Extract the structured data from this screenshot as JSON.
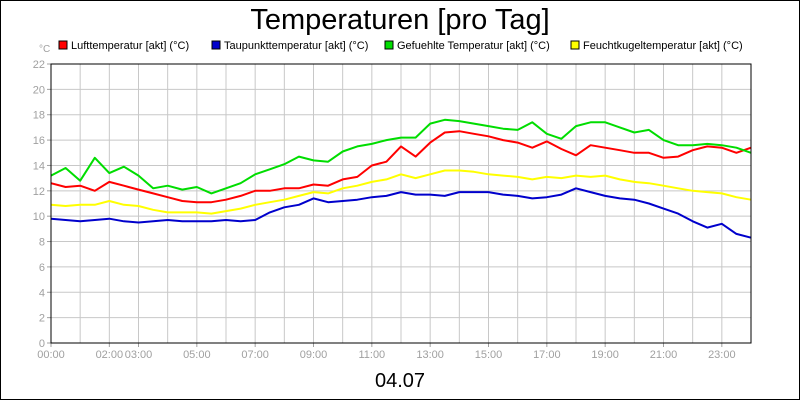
{
  "chart_data": {
    "type": "line",
    "title": "Temperaturen [pro Tag]",
    "date_label": "04.07",
    "y_unit": "°C",
    "ylim": [
      0,
      22
    ],
    "xlim": [
      0,
      24
    ],
    "y_ticks": [
      0,
      2,
      4,
      6,
      8,
      10,
      12,
      14,
      16,
      18,
      20,
      22
    ],
    "x_ticks": [
      {
        "pos": 0,
        "label": "00:00"
      },
      {
        "pos": 2,
        "label": "02:00"
      },
      {
        "pos": 3,
        "label": "03:00"
      },
      {
        "pos": 5,
        "label": "05:00"
      },
      {
        "pos": 7,
        "label": "07:00"
      },
      {
        "pos": 9,
        "label": "09:00"
      },
      {
        "pos": 11,
        "label": "11:00"
      },
      {
        "pos": 13,
        "label": "13:00"
      },
      {
        "pos": 15,
        "label": "15:00"
      },
      {
        "pos": 17,
        "label": "17:00"
      },
      {
        "pos": 19,
        "label": "19:00"
      },
      {
        "pos": 21,
        "label": "21:00"
      },
      {
        "pos": 23,
        "label": "23:00"
      }
    ],
    "grid": true,
    "legend_position": "top",
    "x": [
      0,
      0.5,
      1,
      1.5,
      2,
      2.5,
      3,
      3.5,
      4,
      4.5,
      5,
      5.5,
      6,
      6.5,
      7,
      7.5,
      8,
      8.5,
      9,
      9.5,
      10,
      10.5,
      11,
      11.5,
      12,
      12.5,
      13,
      13.5,
      14,
      14.5,
      15,
      15.5,
      16,
      16.5,
      17,
      17.5,
      18,
      18.5,
      19,
      19.5,
      20,
      20.5,
      21,
      21.5,
      22,
      22.5,
      23,
      23.5,
      24
    ],
    "series": [
      {
        "name": "Lufttemperatur [akt] (°C)",
        "color": "#ff0000",
        "values": [
          12.6,
          12.3,
          12.4,
          12.0,
          12.7,
          12.4,
          12.1,
          11.8,
          11.5,
          11.2,
          11.1,
          11.1,
          11.3,
          11.6,
          12.0,
          12.0,
          12.2,
          12.2,
          12.5,
          12.4,
          12.9,
          13.1,
          14.0,
          14.3,
          15.5,
          14.7,
          15.8,
          16.6,
          16.7,
          16.5,
          16.3,
          16.0,
          15.8,
          15.4,
          15.9,
          15.3,
          14.8,
          15.6,
          15.4,
          15.2,
          15.0,
          15.0,
          14.6,
          14.7,
          15.2,
          15.5,
          15.4,
          15.0,
          15.4
        ]
      },
      {
        "name": "Taupunkttemperatur [akt] (°C)",
        "color": "#0000cc",
        "values": [
          9.8,
          9.7,
          9.6,
          9.7,
          9.8,
          9.6,
          9.5,
          9.6,
          9.7,
          9.6,
          9.6,
          9.6,
          9.7,
          9.6,
          9.7,
          10.3,
          10.7,
          10.9,
          11.4,
          11.1,
          11.2,
          11.3,
          11.5,
          11.6,
          11.9,
          11.7,
          11.7,
          11.6,
          11.9,
          11.9,
          11.9,
          11.7,
          11.6,
          11.4,
          11.5,
          11.7,
          12.2,
          11.9,
          11.6,
          11.4,
          11.3,
          11.0,
          10.6,
          10.2,
          9.6,
          9.1,
          9.4,
          8.6,
          8.3
        ]
      },
      {
        "name": "Gefuehlte Temperatur [akt] (°C)",
        "color": "#00dd00",
        "values": [
          13.2,
          13.8,
          12.8,
          14.6,
          13.4,
          13.9,
          13.2,
          12.2,
          12.4,
          12.1,
          12.3,
          11.8,
          12.2,
          12.6,
          13.3,
          13.7,
          14.1,
          14.7,
          14.4,
          14.3,
          15.1,
          15.5,
          15.7,
          16.0,
          16.2,
          16.2,
          17.3,
          17.6,
          17.5,
          17.3,
          17.1,
          16.9,
          16.8,
          17.4,
          16.5,
          16.1,
          17.1,
          17.4,
          17.4,
          17.0,
          16.6,
          16.8,
          16.0,
          15.6,
          15.6,
          15.7,
          15.6,
          15.4,
          15.0
        ]
      },
      {
        "name": "Feuchtkugeltemperatur [akt] (°C)",
        "color": "#ffff00",
        "values": [
          10.9,
          10.8,
          10.9,
          10.9,
          11.2,
          10.9,
          10.8,
          10.5,
          10.3,
          10.3,
          10.3,
          10.2,
          10.4,
          10.6,
          10.9,
          11.1,
          11.3,
          11.6,
          11.9,
          11.8,
          12.2,
          12.4,
          12.7,
          12.9,
          13.3,
          13.0,
          13.3,
          13.6,
          13.6,
          13.5,
          13.3,
          13.2,
          13.1,
          12.9,
          13.1,
          13.0,
          13.2,
          13.1,
          13.2,
          12.9,
          12.7,
          12.6,
          12.4,
          12.2,
          12.0,
          11.9,
          11.8,
          11.5,
          11.3
        ]
      }
    ]
  }
}
